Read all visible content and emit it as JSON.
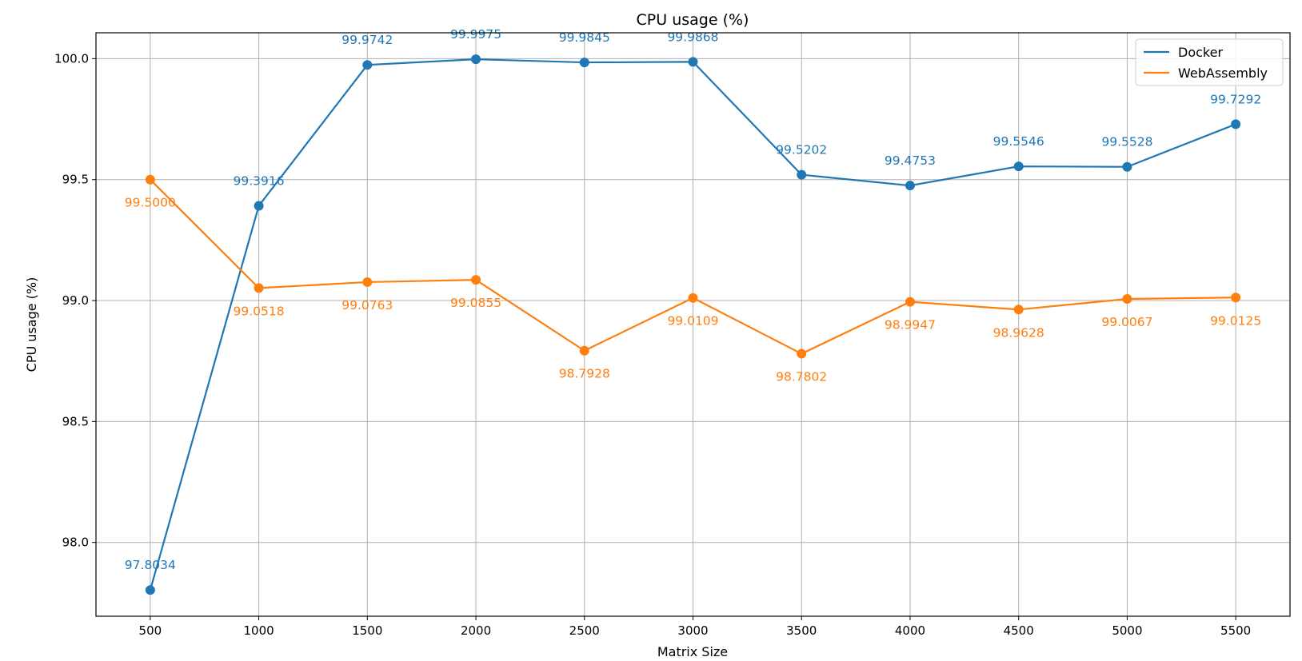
{
  "chart_data": {
    "type": "line",
    "title": "CPU usage (%)",
    "xlabel": "Matrix Size",
    "ylabel": "CPU usage (%)",
    "x": [
      500,
      1000,
      1500,
      2000,
      2500,
      3000,
      3500,
      4000,
      4500,
      5000,
      5500
    ],
    "xlim": [
      250,
      5750
    ],
    "ylim": [
      97.695,
      100.107
    ],
    "yticks": [
      98.0,
      98.5,
      99.0,
      99.5,
      100.0
    ],
    "ytick_labels": [
      "98.0",
      "98.5",
      "99.0",
      "99.5",
      "100.0"
    ],
    "xtick_labels": [
      "500",
      "1000",
      "1500",
      "2000",
      "2500",
      "3000",
      "3500",
      "4000",
      "4500",
      "5000",
      "5500"
    ],
    "grid": true,
    "legend_position": "top-right",
    "series": [
      {
        "name": "Docker",
        "color": "#1f77b4",
        "values": [
          97.8034,
          99.3916,
          99.9742,
          99.9975,
          99.9845,
          99.9868,
          99.5202,
          99.4753,
          99.5546,
          99.5528,
          99.7292
        ],
        "labels": [
          "97.8034",
          "99.3916",
          "99.9742",
          "99.9975",
          "99.9845",
          "99.9868",
          "99.5202",
          "99.4753",
          "99.5546",
          "99.5528",
          "99.7292"
        ],
        "label_position": "above"
      },
      {
        "name": "WebAssembly",
        "color": "#ff7f0e",
        "values": [
          99.5,
          99.0518,
          99.0763,
          99.0855,
          98.7928,
          99.0109,
          98.7802,
          98.9947,
          98.9628,
          99.0067,
          99.0125
        ],
        "labels": [
          "99.5000",
          "99.0518",
          "99.0763",
          "99.0855",
          "98.7928",
          "99.0109",
          "98.7802",
          "98.9947",
          "98.9628",
          "99.0067",
          "99.0125"
        ],
        "label_position": "below"
      }
    ]
  }
}
